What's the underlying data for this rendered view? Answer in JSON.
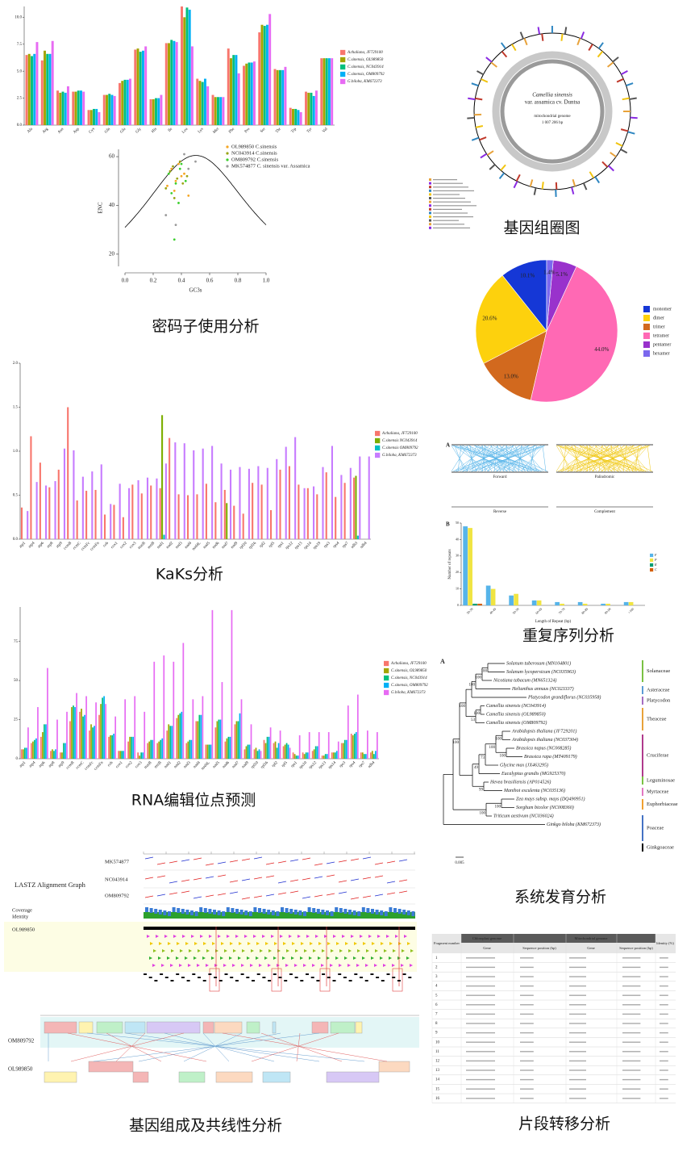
{
  "chart_data": [
    {
      "type": "bar",
      "categories": [
        "Ala",
        "Arg",
        "Asn",
        "Asp",
        "Cys",
        "Gln",
        "Glu",
        "Gly",
        "His",
        "Ile",
        "Leu",
        "Lys",
        "Met",
        "Phe",
        "Pro",
        "Ser",
        "Thr",
        "Trp",
        "Tyr",
        "Val"
      ],
      "series": [
        {
          "name": "A.thaliana, JF729100",
          "color": "#f8766d",
          "values": [
            6.5,
            6.0,
            3.2,
            3.1,
            1.4,
            2.8,
            3.9,
            7.0,
            2.4,
            7.6,
            11.0,
            4.3,
            2.8,
            7.1,
            5.5,
            8.6,
            5.2,
            1.6,
            3.1,
            6.2
          ]
        },
        {
          "name": "C.sinensis, OL989850",
          "color": "#a3a500",
          "values": [
            6.6,
            6.9,
            3.0,
            3.1,
            1.4,
            2.8,
            4.1,
            7.1,
            2.4,
            7.6,
            10.0,
            4.1,
            2.6,
            6.2,
            5.7,
            9.3,
            5.1,
            1.5,
            3.0,
            6.2
          ]
        },
        {
          "name": "C.sinensis, NC043914",
          "color": "#00bf7d",
          "values": [
            6.4,
            6.6,
            3.1,
            3.2,
            1.5,
            2.9,
            4.2,
            6.8,
            2.5,
            7.9,
            10.9,
            4.0,
            2.6,
            6.5,
            5.8,
            9.2,
            5.1,
            1.5,
            3.0,
            6.2
          ]
        },
        {
          "name": "C.sinensis, OM809792",
          "color": "#00b0f6",
          "values": [
            6.6,
            6.6,
            3.0,
            3.2,
            1.5,
            2.8,
            4.2,
            6.9,
            2.5,
            7.8,
            10.7,
            4.3,
            2.6,
            6.5,
            5.8,
            9.3,
            5.1,
            1.4,
            2.7,
            6.2
          ]
        },
        {
          "name": "G.biloba, KM672373",
          "color": "#e76bf3",
          "values": [
            7.7,
            7.8,
            3.6,
            3.1,
            1.2,
            2.7,
            4.3,
            7.3,
            2.8,
            7.7,
            7.3,
            3.6,
            2.6,
            4.8,
            5.9,
            10.3,
            5.4,
            1.2,
            3.2,
            6.2
          ]
        }
      ],
      "ylim": [
        0,
        11
      ],
      "yticks": [
        {
          "value": 0,
          "label": "0.0"
        },
        2.5,
        {
          "value": 5,
          "label": "5.0"
        },
        7.5,
        {
          "value": 10,
          "label": "10.0"
        }
      ]
    },
    {
      "type": "scatter",
      "x_label": "GC3s",
      "y_label": "ENC",
      "series": [
        {
          "name": "OL989850  C.sinensis",
          "color": "#f5a623",
          "x": [
            0.33,
            0.36,
            0.4,
            0.3,
            0.38,
            0.42,
            0.35,
            0.45
          ],
          "values": [
            55,
            50,
            52,
            48,
            57,
            53,
            46,
            44
          ]
        },
        {
          "name": "NC043914  C.sinensis",
          "color": "#9aa516",
          "x": [
            0.32,
            0.37,
            0.41,
            0.34,
            0.29,
            0.44,
            0.39,
            0.35
          ],
          "values": [
            54,
            51,
            49,
            56,
            47,
            52,
            58,
            43
          ]
        },
        {
          "name": "OM809792  C.sinensis",
          "color": "#3ccf2e",
          "x": [
            0.31,
            0.36,
            0.39,
            0.43,
            0.33,
            0.4,
            0.38,
            0.35
          ],
          "values": [
            53,
            49,
            55,
            50,
            45,
            57,
            41,
            26
          ]
        },
        {
          "name": "MK574877  C. sinensis var. Assamica",
          "color": "#9a9a9a",
          "x": [
            0.36,
            0.45,
            0.29,
            0.42,
            0.5
          ],
          "values": [
            32,
            55,
            36,
            61,
            58
          ]
        }
      ],
      "xlim": [
        0,
        1
      ],
      "ylim": [
        15,
        63
      ],
      "xticks": [
        {
          "value": 0,
          "label": "0.0"
        },
        0.2,
        0.4,
        0.6,
        0.8,
        {
          "value": 1,
          "label": "1.0"
        }
      ],
      "yticks": [
        20,
        40,
        60
      ]
    },
    {
      "type": "pie",
      "categories": [
        "monomer",
        "dimer",
        "trimer",
        "tetramer",
        "pentamer",
        "hexamer"
      ],
      "values": [
        10.1,
        20.6,
        13.0,
        44.0,
        5.1,
        1.4
      ],
      "value_labels": [
        "10.1%",
        "20.6%",
        "13.0%",
        "44.0%",
        "5.1%",
        "1.4%"
      ],
      "colors": [
        "#1537d6",
        "#fdd10d",
        "#d2691e",
        "#ff69b4",
        "#9932cc",
        "#7b68ee"
      ]
    },
    {
      "type": "bar",
      "categories": [
        "atp1",
        "atp4",
        "atp6",
        "atp8",
        "atp9",
        "ccmB",
        "ccmC",
        "ccmFc",
        "ccmFn",
        "cob",
        "cox1",
        "cox2",
        "cox3",
        "matR",
        "mttB",
        "nad1",
        "nad2",
        "nad3",
        "nad4",
        "nad4L",
        "nad5",
        "nad6",
        "nad7",
        "nad9",
        "rpl10",
        "rpl16",
        "rpl2",
        "rpl5",
        "rps1",
        "rps12",
        "rps13",
        "rps14",
        "rps19",
        "rps3",
        "rps4",
        "rps7",
        "sdh3",
        "sdh4"
      ],
      "series": [
        {
          "name": "A.thaliana, JF729100",
          "color": "#f8766d",
          "values": [
            0.36,
            1.17,
            0.87,
            0.59,
            0.79,
            1.5,
            0.44,
            0.55,
            0.56,
            0.28,
            0.39,
            0.25,
            0.62,
            0.52,
            0.61,
            0.58,
            1.15,
            0.51,
            0.5,
            0.51,
            0.63,
            0.42,
            0.56,
            0.38,
            0.29,
            0.64,
            0.62,
            0.33,
            0.79,
            0.83,
            0.62,
            0.58,
            0.51,
            0.76,
            0.48,
            0.64,
            0.7,
            null
          ]
        },
        {
          "name": "C.sinensis NC043914",
          "color": "#7cae00",
          "values": [
            null,
            null,
            null,
            null,
            null,
            null,
            null,
            null,
            null,
            null,
            null,
            null,
            null,
            null,
            null,
            1.41,
            null,
            null,
            null,
            null,
            null,
            null,
            0.41,
            null,
            null,
            null,
            null,
            null,
            null,
            null,
            null,
            null,
            null,
            null,
            null,
            null,
            0.72,
            null
          ]
        },
        {
          "name": "C.sinensis OM809792",
          "color": "#00bfc4",
          "values": [
            null,
            null,
            null,
            null,
            null,
            null,
            null,
            null,
            null,
            null,
            null,
            null,
            null,
            null,
            null,
            0.05,
            null,
            null,
            null,
            null,
            null,
            null,
            null,
            null,
            null,
            null,
            null,
            null,
            null,
            null,
            null,
            null,
            null,
            null,
            null,
            null,
            0.04,
            null
          ]
        },
        {
          "name": "G.biloba, KM672373",
          "color": "#c77cff",
          "values": [
            0.32,
            0.65,
            0.61,
            0.66,
            1.03,
            1.01,
            0.71,
            0.77,
            0.85,
            0.4,
            0.63,
            0.58,
            0.67,
            0.7,
            0.69,
            0.86,
            1.1,
            1.09,
            1.01,
            1.03,
            1.06,
            0.86,
            0.79,
            0.82,
            0.8,
            0.83,
            0.81,
            0.91,
            1.05,
            1.16,
            0.58,
            0.6,
            0.82,
            1.06,
            0.73,
            0.81,
            0.94,
            0.94
          ]
        }
      ],
      "ylim": [
        0,
        2
      ],
      "yticks": [
        {
          "value": 0,
          "label": "0.0"
        },
        0.5,
        {
          "value": 1,
          "label": "1.0"
        },
        1.5,
        {
          "value": 2,
          "label": "2.0"
        }
      ]
    },
    {
      "type": "bar",
      "categories": [
        "atp1",
        "atp4",
        "atp6",
        "atp8",
        "atp9",
        "ccmB",
        "ccmC",
        "ccmFc",
        "ccmFn",
        "cob",
        "cox1",
        "cox2",
        "cox3",
        "matR",
        "mttB",
        "nad1",
        "nad2",
        "nad3",
        "nad4",
        "nad4L",
        "nad5",
        "nad6",
        "nad7",
        "nad9",
        "rpl10",
        "rpl16",
        "rpl2",
        "rpl5",
        "rps1",
        "rps10",
        "rps12",
        "rps13",
        "rps14",
        "rps3",
        "rps4",
        "rps7",
        "sdh4"
      ],
      "series": [
        {
          "name": "A.thaliana, JF729100",
          "color": "#f8766d",
          "values": [
            6,
            10,
            14,
            5,
            4,
            24,
            30,
            18,
            28,
            14,
            5,
            11,
            4,
            10,
            10,
            18,
            26,
            10,
            24,
            9,
            20,
            11,
            22,
            6,
            6,
            12,
            10,
            8,
            4,
            4,
            5,
            2,
            4,
            10,
            16,
            4,
            4
          ]
        },
        {
          "name": "C.sinensis, OL989850",
          "color": "#a3a500",
          "values": [
            6,
            11,
            17,
            6,
            4,
            33,
            32,
            22,
            35,
            15,
            5,
            14,
            2,
            11,
            11,
            22,
            28,
            11,
            24,
            9,
            24,
            13,
            24,
            8,
            7,
            10,
            11,
            9,
            3,
            3,
            6,
            2,
            4,
            10,
            15,
            4,
            5
          ]
        },
        {
          "name": "C.sinensis, NC043914",
          "color": "#00bf7d",
          "values": [
            7,
            12,
            22,
            5,
            10,
            34,
            27,
            20,
            39,
            15,
            5,
            14,
            4,
            12,
            12,
            21,
            29,
            12,
            28,
            9,
            25,
            14,
            24,
            9,
            5,
            14,
            7,
            10,
            2,
            4,
            8,
            3,
            4,
            12,
            16,
            3,
            3
          ]
        },
        {
          "name": "C.sinensis, OM809792",
          "color": "#00b0f6",
          "values": [
            7,
            13,
            22,
            6,
            10,
            33,
            28,
            21,
            40,
            16,
            5,
            14,
            4,
            12,
            13,
            21,
            30,
            12,
            28,
            9,
            25,
            14,
            29,
            9,
            6,
            14,
            10,
            9,
            2,
            4,
            8,
            3,
            5,
            12,
            17,
            3,
            5
          ]
        },
        {
          "name": "G.biloba, KM672373",
          "color": "#e76bf3",
          "values": [
            20,
            33,
            58,
            25,
            30,
            42,
            40,
            36,
            35,
            27,
            38,
            40,
            30,
            62,
            66,
            62,
            74,
            38,
            40,
            95,
            49,
            95,
            38,
            22,
            5,
            20,
            18,
            7,
            15,
            17,
            17,
            17,
            11,
            34,
            41,
            18,
            17
          ]
        }
      ],
      "ylim": [
        0,
        97
      ],
      "yticks": [
        0,
        25,
        50,
        75
      ]
    },
    {
      "type": "bar",
      "x_label": "Length of Repeat (bp)",
      "y_label": "Number of repeats",
      "categories": [
        "30-39",
        "40-49",
        "50-59",
        "60-69",
        "70-79",
        "80-89",
        "90-99",
        ">100"
      ],
      "series": [
        {
          "name": "F",
          "color": "#56b4e9",
          "values": [
            48,
            12,
            6,
            3,
            2,
            2,
            1,
            2
          ]
        },
        {
          "name": "P",
          "color": "#f0e442",
          "values": [
            47,
            10,
            7,
            3,
            1,
            1,
            1,
            2
          ]
        },
        {
          "name": "R",
          "color": "#009e73",
          "values": [
            1,
            0,
            0,
            0,
            0,
            0,
            0,
            0
          ]
        },
        {
          "name": "C",
          "color": "#d55e00",
          "values": [
            1,
            0,
            0,
            0,
            0,
            0,
            0,
            0
          ]
        }
      ],
      "ylim": [
        0,
        50
      ],
      "yticks": [
        0,
        10,
        20,
        30,
        40,
        50
      ]
    }
  ],
  "captions": [
    "密码子使用分析",
    "基因组圈图",
    "KaKs分析",
    "重复序列分析",
    "RNA编辑位点预测",
    "系统发育分析",
    "基因组成及共线性分析",
    "片段转移分析"
  ],
  "genome_map": {
    "title": "Camellia sinensis",
    "subtitle": "var. assamica cv. Duntsa",
    "kind": "mitochondrial genome",
    "length": "1 007 206 bp"
  },
  "repeat_panel": {
    "panel_a": "A",
    "panel_b": "B",
    "tracks": [
      "Forward",
      "Palindromic"
    ],
    "groups": [
      "Reverse",
      "Complement"
    ]
  },
  "phylogeny": {
    "panel": "A",
    "scale": "0.005",
    "taxa": [
      "Solanum tuberosum (MN104801)",
      "Solanum lycopersicum (NC035963)",
      "Nicotiana tabacum (MN651324)",
      "Helianthus annuus (NC023337)",
      "Platycodon grandiflorus (NC035958)",
      "Camellia sinensis (NC043914)",
      "Camellia sinensis (OL989850)",
      "Camellia sinensis (OM809792)",
      "Arabidopsis thaliana (JF729201)",
      "Arabidopsis thaliana (NC037304)",
      "Brassica napus (NC008285)",
      "Brassica rapa (MT409179)",
      "Glycine max (JX463295)",
      "Eucalyptus grandis (MG925370)",
      "Hevea brasiliensis (AP014526)",
      "Manihot esculenta (NC035136)",
      "Zea mays subsp. mays (DQ490951)",
      "Sorghum bicolor (NC008360)",
      "Triticum aestivum (NC036024)",
      "Ginkgo biloba (KM672373)"
    ],
    "support": [
      "100",
      "100",
      "100",
      "100",
      "53",
      "100",
      "100",
      "100",
      "73",
      "49",
      "99",
      "100",
      "100",
      "100",
      "100"
    ],
    "families": [
      {
        "name": "Solanaceae",
        "color": "#7ac143"
      },
      {
        "name": "Asteraceae",
        "color": "#5b9bd5"
      },
      {
        "name": "Platycodon",
        "color": "#a56cc1"
      },
      {
        "name": "Theaceae",
        "color": "#e8a23a"
      },
      {
        "name": "Cruciferae",
        "color": "#b03a8c"
      },
      {
        "name": "Leguminosae",
        "color": "#7ac143"
      },
      {
        "name": "Myrtaceae",
        "color": "#e377c2"
      },
      {
        "name": "Euphorbiaceae",
        "color": "#f0a030"
      },
      {
        "name": "Poaceae",
        "color": "#4472c4"
      },
      {
        "name": "Ginkgoaceae",
        "color": "#000000"
      }
    ]
  },
  "lastz": {
    "title": "LASTZ Alignment Graph",
    "queries": [
      "MK574877",
      "NC043914",
      "OM809792"
    ],
    "tracks": [
      "Coverage",
      "Identity"
    ],
    "reference": "OL989850"
  },
  "synteny": {
    "genomes": [
      "OM809792",
      "OL989850"
    ]
  },
  "transfer_table": {
    "header": [
      "Fragment number",
      "Chloroplast genome",
      "Mitochondrial genome",
      "Identity (%)"
    ],
    "subheader": [
      "Gene",
      "Sequence position (bp)",
      "Gene",
      "Sequence position (bp)"
    ],
    "rows": [
      "1",
      "2",
      "3",
      "4",
      "5",
      "6",
      "7",
      "8",
      "9",
      "10",
      "11",
      "12",
      "13",
      "14",
      "15",
      "16"
    ]
  }
}
